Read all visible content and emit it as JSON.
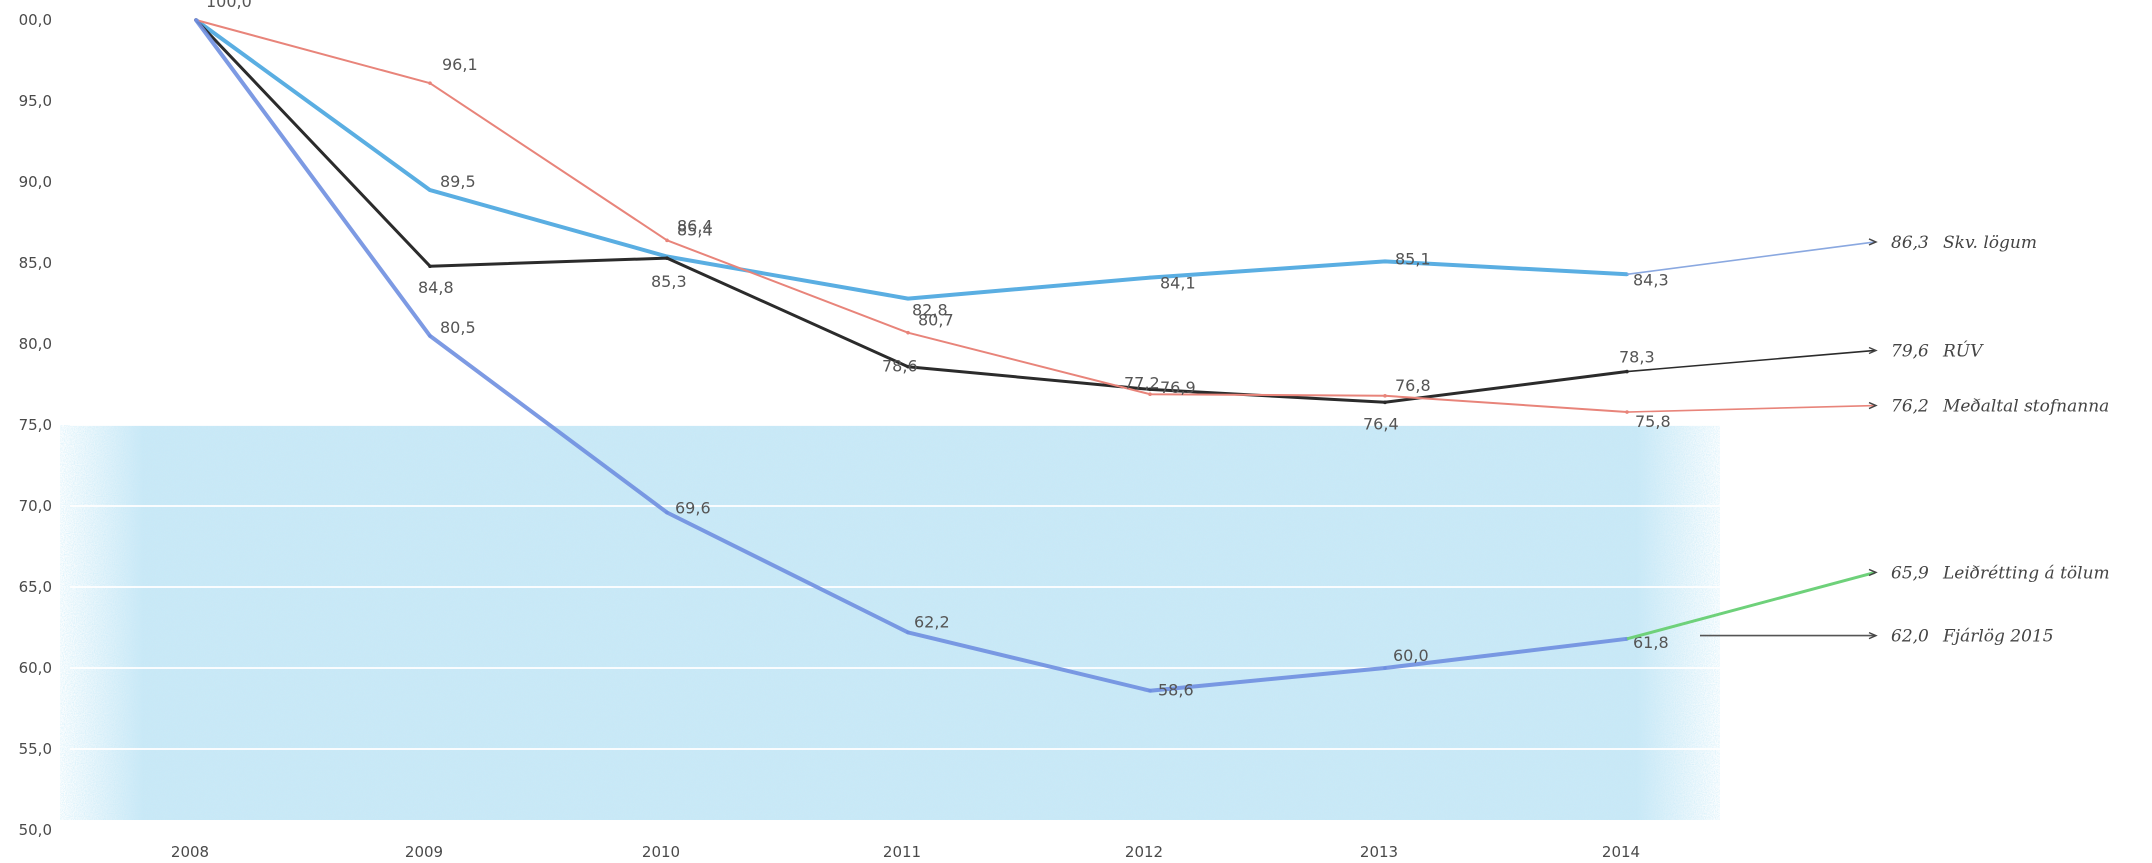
{
  "chart_data": {
    "type": "line",
    "categories": [
      "2008",
      "2009",
      "2010",
      "2011",
      "2012",
      "2013",
      "2014"
    ],
    "ylim": [
      50,
      100
    ],
    "y_ticks": [
      "00,0",
      "95,0",
      "90,0",
      "85,0",
      "80,0",
      "75,0",
      "70,0",
      "65,0",
      "60,0",
      "55,0",
      "50,0"
    ],
    "grid": true,
    "series": [
      {
        "values": [
          100.0,
          89.5,
          85.4,
          82.8,
          84.1,
          85.1,
          84.3
        ],
        "labels": [
          "",
          "89,5",
          "85,4",
          "82,8",
          "84,1",
          "85,1",
          "84,3"
        ],
        "color": "#5aaee2",
        "extension": {
          "value": 86.3,
          "value_label": "86,3",
          "text": "Skv. lögum",
          "color": "#8aa8e0"
        }
      },
      {
        "values": [
          100.0,
          84.8,
          85.3,
          78.6,
          77.2,
          76.4,
          78.3
        ],
        "labels": [
          "",
          "84,8",
          "85,3",
          "78,6",
          "77,2",
          "76,4",
          "78,3"
        ],
        "color": "#2b2b2b",
        "extension": {
          "value": 79.6,
          "value_label": "79,6",
          "text": "RÚV",
          "color": "#2b2b2b"
        }
      },
      {
        "values": [
          100.0,
          96.1,
          86.4,
          80.7,
          76.9,
          76.8,
          75.8
        ],
        "labels": [
          "100,0",
          "96,1",
          "86,4",
          "80,7",
          "76,9",
          "76,8",
          "75,8"
        ],
        "color": "#e8847a",
        "extension": {
          "value": 76.2,
          "value_label": "76,2",
          "text": "Meðaltal stofnanna",
          "color": "#e8847a"
        }
      },
      {
        "values": [
          100.0,
          80.5,
          69.6,
          62.2,
          58.6,
          60.0,
          61.8
        ],
        "labels": [
          "",
          "80,5",
          "69,6",
          "62,2",
          "58,6",
          "60,0",
          "61,8"
        ],
        "color": "#6f8fe0",
        "extension": {
          "value": 65.9,
          "value_label": "65,9",
          "text": "Leiðrétting á tölum",
          "color": "#6ed17a"
        }
      },
      {
        "extension": {
          "value": 62.0,
          "value_label": "62,0",
          "text": "Fjárlög 2015",
          "color": "#555555"
        }
      }
    ]
  }
}
